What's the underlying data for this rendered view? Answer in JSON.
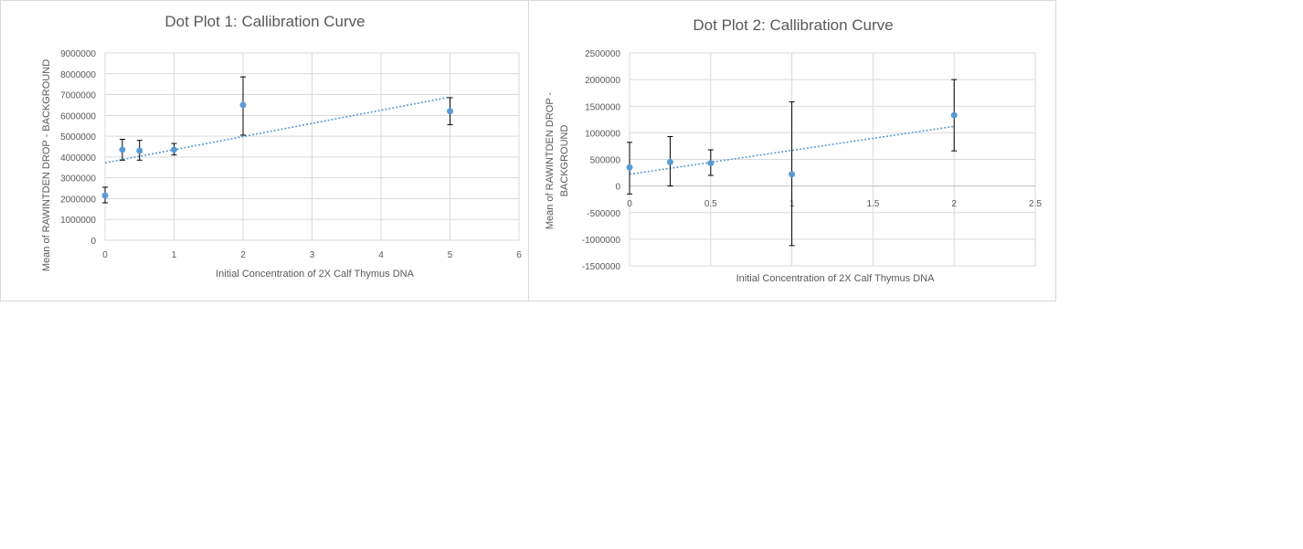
{
  "chart_data": [
    {
      "type": "scatter",
      "title": "Dot Plot 1: Callibration Curve",
      "xlabel": "Initial Concentration of 2X Calf Thymus DNA",
      "ylabel": "Mean of RAWINTDEN DROP - BACKGROUND",
      "xlim": [
        0,
        6
      ],
      "ylim": [
        0,
        9000000
      ],
      "x_ticks": [
        "0",
        "1",
        "2",
        "3",
        "4",
        "5",
        "6"
      ],
      "y_ticks": [
        "0",
        "1000000",
        "2000000",
        "3000000",
        "4000000",
        "5000000",
        "6000000",
        "7000000",
        "8000000",
        "9000000"
      ],
      "grid": true,
      "series": [
        {
          "points": [
            {
              "x": 0,
              "y": 2150000,
              "err_low": 1800000,
              "err_high": 2550000
            },
            {
              "x": 0.25,
              "y": 4350000,
              "err_low": 3850000,
              "err_high": 4850000
            },
            {
              "x": 0.5,
              "y": 4300000,
              "err_low": 3850000,
              "err_high": 4800000
            },
            {
              "x": 1,
              "y": 4350000,
              "err_low": 4100000,
              "err_high": 4650000
            },
            {
              "x": 2,
              "y": 6500000,
              "err_low": 5050000,
              "err_high": 7850000
            },
            {
              "x": 5,
              "y": 6200000,
              "err_low": 5550000,
              "err_high": 6850000
            }
          ]
        }
      ],
      "trendline": {
        "type": "linear",
        "x": [
          0,
          5
        ],
        "y": [
          3720000,
          6880000
        ]
      },
      "color": "#5b9bd5"
    },
    {
      "type": "scatter",
      "title": "Dot Plot 2: Callibration Curve",
      "xlabel": "Initial Concentration of 2X Calf Thymus DNA",
      "ylabel": [
        "Mean of RAWINTDEN DROP -",
        "BACKGROUND"
      ],
      "xlim": [
        0,
        2.5
      ],
      "ylim": [
        -1500000,
        2500000
      ],
      "x_ticks": [
        "0",
        "0.5",
        "1",
        "1.5",
        "2",
        "2.5"
      ],
      "y_ticks": [
        "-1500000",
        "-1000000",
        "-500000",
        "0",
        "500000",
        "1000000",
        "1500000",
        "2000000",
        "2500000"
      ],
      "grid": true,
      "series": [
        {
          "points": [
            {
              "x": 0,
              "y": 350000,
              "err_low": -150000,
              "err_high": 820000
            },
            {
              "x": 0.25,
              "y": 450000,
              "err_low": 0,
              "err_high": 930000
            },
            {
              "x": 0.5,
              "y": 430000,
              "err_low": 200000,
              "err_high": 680000
            },
            {
              "x": 1,
              "y": 220000,
              "err_low": -1120000,
              "err_high": 1580000
            },
            {
              "x": 2,
              "y": 1330000,
              "err_low": 660000,
              "err_high": 2000000
            }
          ]
        }
      ],
      "trendline": {
        "type": "linear",
        "x": [
          0,
          2
        ],
        "y": [
          220000,
          1120000
        ]
      },
      "color": "#5b9bd5"
    }
  ]
}
